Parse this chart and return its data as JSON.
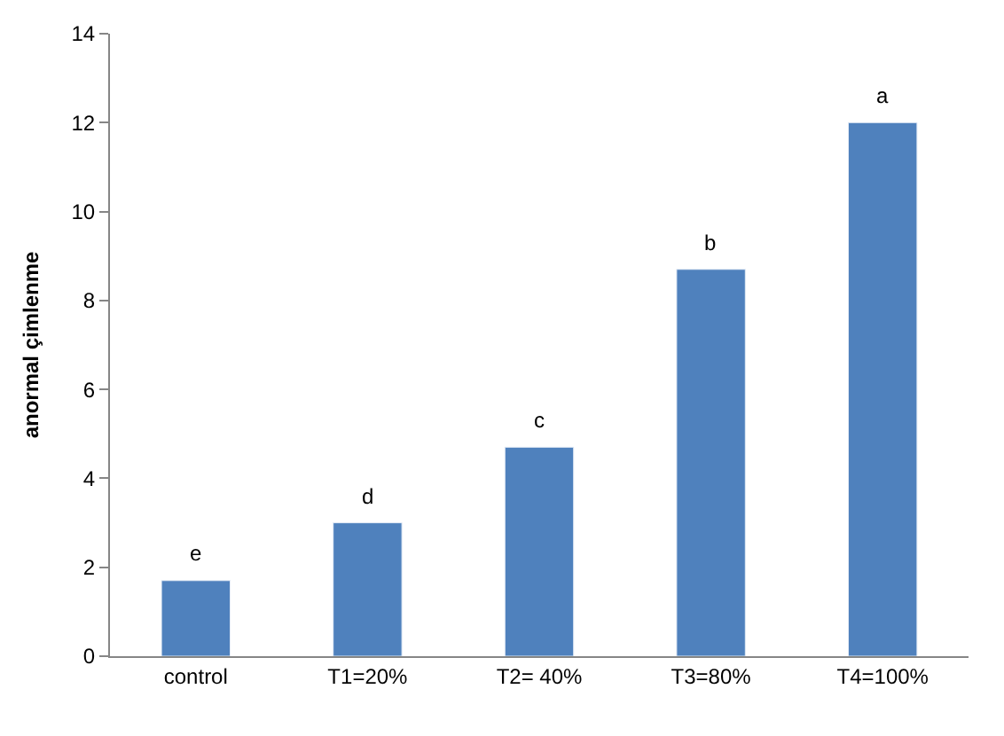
{
  "chart_data": {
    "type": "bar",
    "ylabel": "anormal çimlenme",
    "categories": [
      "control",
      "T1=20%",
      "T2= 40%",
      "T3=80%",
      "T4=100%"
    ],
    "values": [
      1.7,
      3.0,
      4.7,
      8.7,
      12.0
    ],
    "color": "#4f81bd",
    "ylim": [
      0,
      14
    ],
    "yticks": [
      0,
      2,
      4,
      6,
      8,
      10,
      12,
      14
    ],
    "legend": false,
    "annotations": [
      {
        "text": "e",
        "x": "control",
        "y": 1.7
      },
      {
        "text": "d",
        "x": "T1=20%",
        "y": 3.0
      },
      {
        "text": "c",
        "x": "T2= 40%",
        "y": 4.7
      },
      {
        "text": "b",
        "x": "T3=80%",
        "y": 8.7
      },
      {
        "text": "a",
        "x": "T4=100%",
        "y": 12.0
      }
    ]
  }
}
